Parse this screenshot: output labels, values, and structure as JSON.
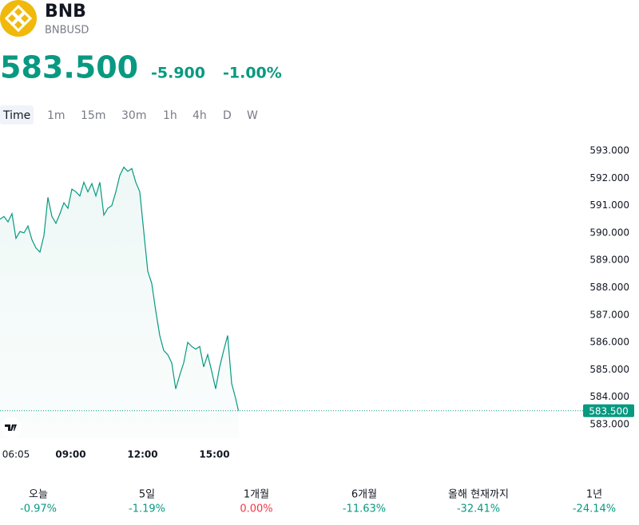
{
  "header": {
    "name": "BNB",
    "ticker": "BNBUSD",
    "price": "583.500",
    "change": "-5.900",
    "change_percent": "-1.00%"
  },
  "intervals": [
    "Time",
    "1m",
    "15m",
    "30m",
    "1h",
    "4h",
    "D",
    "W"
  ],
  "chart_data": {
    "type": "line",
    "x": [
      363,
      373,
      383,
      393,
      403,
      413,
      423,
      433,
      443,
      453,
      463,
      473,
      483,
      493,
      503,
      513,
      523,
      533,
      543,
      553,
      563,
      573,
      583,
      593,
      603,
      613,
      623,
      633,
      643,
      653,
      663,
      673,
      683,
      693,
      703,
      713,
      723,
      733,
      743,
      753,
      763,
      773,
      783,
      793,
      803,
      813,
      823,
      833,
      843,
      853,
      863,
      873,
      883,
      893,
      903,
      913,
      923,
      933,
      943,
      953,
      960
    ],
    "series": [
      {
        "name": "BNBUSD",
        "color": "#089981",
        "values": [
          590.5,
          590.6,
          590.4,
          590.7,
          589.8,
          590.05,
          590.0,
          590.25,
          589.75,
          589.45,
          589.3,
          589.9,
          591.3,
          590.6,
          590.35,
          590.7,
          591.1,
          590.9,
          591.6,
          591.5,
          591.35,
          591.85,
          591.5,
          591.8,
          591.35,
          591.85,
          590.65,
          590.9,
          591.0,
          591.5,
          592.1,
          592.4,
          592.25,
          592.35,
          591.85,
          591.5,
          590.05,
          588.6,
          588.15,
          587.15,
          586.25,
          585.7,
          585.55,
          585.25,
          584.3,
          584.8,
          585.25,
          586.0,
          585.85,
          585.75,
          585.85,
          585.1,
          585.55,
          584.95,
          584.3,
          585.1,
          585.7,
          586.25,
          584.5,
          583.95,
          583.5
        ]
      }
    ],
    "xlim": [
      363,
      1819
    ],
    "xticks": [
      {
        "value": 365,
        "label": "06:05"
      },
      {
        "value": 540,
        "label": "09:00"
      },
      {
        "value": 720,
        "label": "12:00"
      },
      {
        "value": 900,
        "label": "15:00"
      }
    ],
    "ylim": [
      582.5,
      593.6
    ],
    "yticks": [
      {
        "value": 583,
        "label": "583.000"
      },
      {
        "value": 584,
        "label": "584.000"
      },
      {
        "value": 585,
        "label": "585.000"
      },
      {
        "value": 586,
        "label": "586.000"
      },
      {
        "value": 587,
        "label": "587.000"
      },
      {
        "value": 588,
        "label": "588.000"
      },
      {
        "value": 589,
        "label": "589.000"
      },
      {
        "value": 590,
        "label": "590.000"
      },
      {
        "value": 591,
        "label": "591.000"
      },
      {
        "value": 592,
        "label": "592.000"
      },
      {
        "value": 593,
        "label": "593.000"
      }
    ],
    "price_line": {
      "value": 583.5,
      "label": "583.500"
    }
  },
  "performance": [
    {
      "period": "오늘",
      "change": "-0.97%",
      "color": "#089981"
    },
    {
      "period": "5일",
      "change": "-1.19%",
      "color": "#089981"
    },
    {
      "period": "1개월",
      "change": "0.00%",
      "color": "#f23645"
    },
    {
      "period": "6개월",
      "change": "-11.63%",
      "color": "#089981"
    },
    {
      "period": "올해 현재까지",
      "change": "-32.41%",
      "color": "#089981"
    },
    {
      "period": "1년",
      "change": "-24.14%",
      "color": "#089981"
    }
  ]
}
